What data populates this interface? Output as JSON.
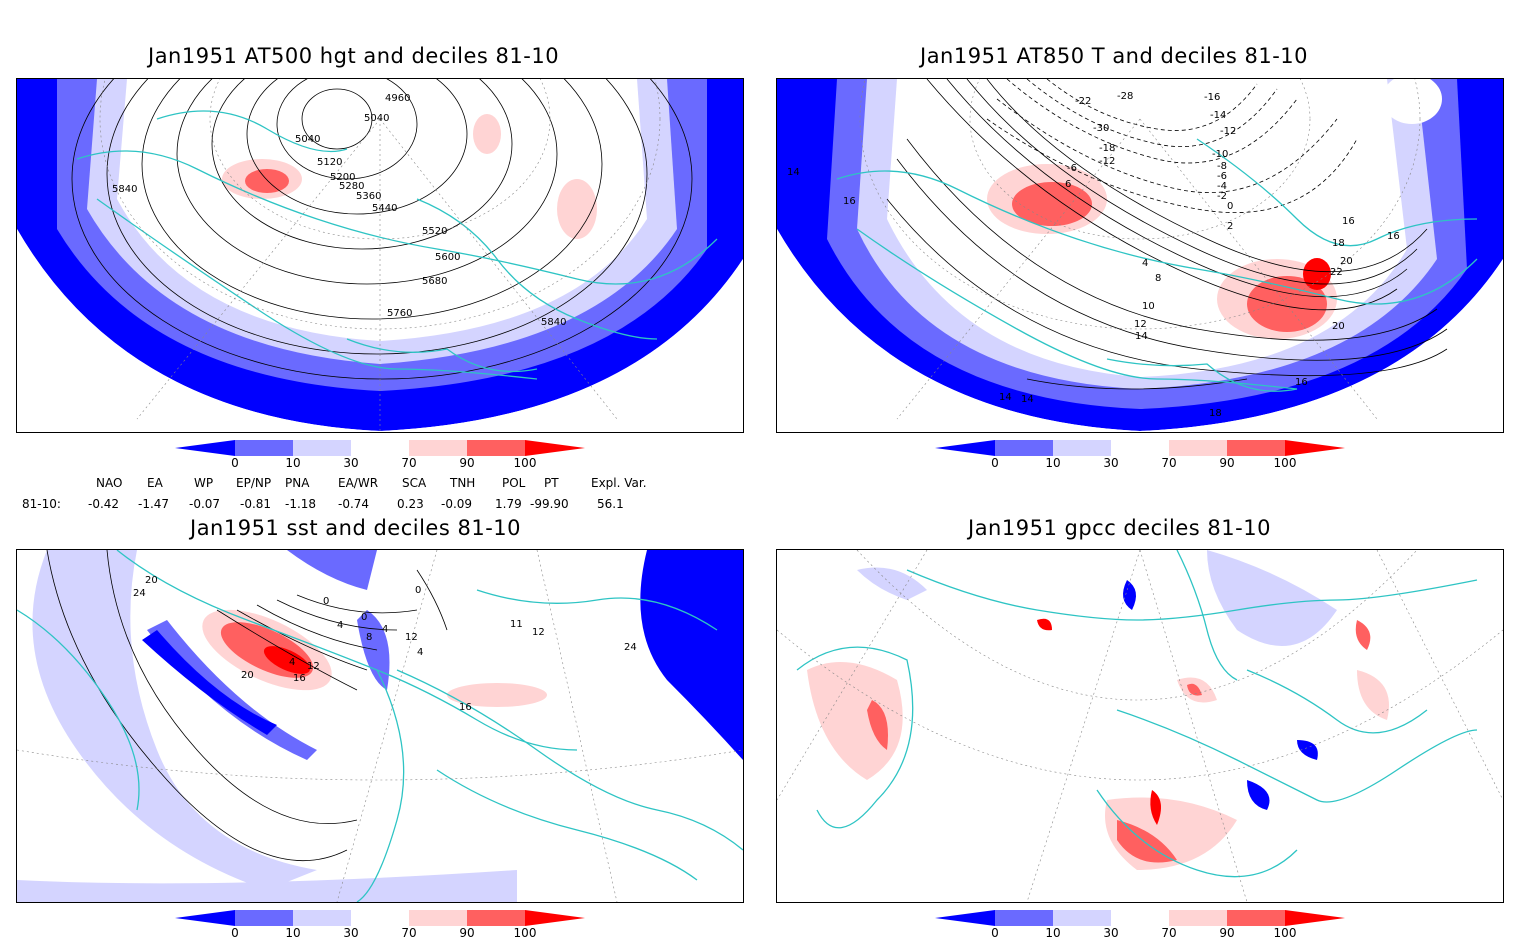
{
  "colors": {
    "dark_blue": "#0000ff",
    "mid_blue": "#6a6aff",
    "light_blue": "#d4d4ff",
    "light_red": "#ffd4d4",
    "mid_red": "#ff6060",
    "dark_red": "#ff0000",
    "coast": "#2ec4c4"
  },
  "panels": [
    {
      "title": "Jan1951 AT500 hgt and deciles 81-10",
      "contour_labels": [
        "4960",
        "5040",
        "5040",
        "5120",
        "5200",
        "5280",
        "5360",
        "5440",
        "5520",
        "5600",
        "5680",
        "5760",
        "5840",
        "5840"
      ]
    },
    {
      "title": "Jan1951 AT850 T and deciles 81-10",
      "contour_labels": [
        "-22",
        "-28",
        "-16",
        "-14",
        "-12",
        "-10",
        "-8",
        "-6",
        "-4",
        "-2",
        "0",
        "2",
        "4",
        "6",
        "8",
        "10",
        "12",
        "14",
        "16",
        "18",
        "20",
        "22",
        "20",
        "16",
        "14",
        "14",
        "14",
        "18",
        "16",
        "-30",
        "-18",
        "-12",
        "-6",
        "16"
      ]
    },
    {
      "title": "Jan1951 sst and deciles 81-10",
      "contour_labels": [
        "24",
        "20",
        "0",
        "0",
        "4",
        "0",
        "4",
        "8",
        "4",
        "12",
        "16",
        "20",
        "12",
        "24",
        "16",
        "11",
        "12",
        "4"
      ]
    },
    {
      "title": "Jan1951 gpcc deciles 81-10",
      "contour_labels": []
    }
  ],
  "colorbar": {
    "labels": [
      "0",
      "10",
      "30",
      "70",
      "90",
      "100"
    ]
  },
  "indices": {
    "names": [
      "NAO",
      "EA",
      "WP",
      "EP/NP",
      "PNA",
      "EA/WR",
      "SCA",
      "TNH",
      "POL",
      "PT",
      "Expl. Var."
    ],
    "row_label": "81-10:",
    "values": [
      "-0.42",
      "-1.47",
      "-0.07",
      "-0.81",
      "-1.18",
      "-0.74",
      "0.23",
      "-0.09",
      "1.79",
      "-99.90",
      "56.1"
    ]
  }
}
